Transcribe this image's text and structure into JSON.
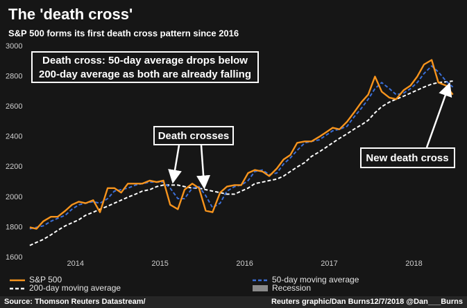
{
  "chart_data": {
    "type": "line",
    "title": "The 'death cross'",
    "subtitle": "S&P 500 forms its first death cross pattern since 2016",
    "annotations": {
      "main": [
        "Death cross: 50-day average drops below",
        "200-day average as both are already falling"
      ],
      "crosses": "Death crosses",
      "new": "New death cross"
    },
    "source": "Source: Thomson Reuters Datastream/",
    "credit": "Reuters graphic/Dan Burns12/7/2018 @Dan___Burns",
    "xlim": [
      2013.92,
      2018.98
    ],
    "xticks": [
      {
        "value": 2014.5,
        "label": "2014"
      },
      {
        "value": 2015.5,
        "label": "2015"
      },
      {
        "value": 2016.5,
        "label": "2016"
      },
      {
        "value": 2017.5,
        "label": "2017"
      },
      {
        "value": 2018.5,
        "label": "2018"
      }
    ],
    "ylim": [
      1600,
      3000
    ],
    "yticks": [
      1600,
      1800,
      2000,
      2200,
      2400,
      2600,
      2800,
      3000
    ],
    "x": [
      2013.96,
      2014.04,
      2014.12,
      2014.21,
      2014.29,
      2014.38,
      2014.46,
      2014.54,
      2014.62,
      2014.71,
      2014.79,
      2014.88,
      2014.96,
      2015.04,
      2015.12,
      2015.21,
      2015.29,
      2015.38,
      2015.46,
      2015.54,
      2015.62,
      2015.71,
      2015.79,
      2015.88,
      2015.96,
      2016.04,
      2016.12,
      2016.21,
      2016.29,
      2016.38,
      2016.46,
      2016.54,
      2016.62,
      2016.71,
      2016.79,
      2016.88,
      2016.96,
      2017.04,
      2017.12,
      2017.21,
      2017.29,
      2017.38,
      2017.46,
      2017.54,
      2017.62,
      2017.71,
      2017.79,
      2017.88,
      2017.96,
      2018.04,
      2018.12,
      2018.21,
      2018.29,
      2018.38,
      2018.46,
      2018.54,
      2018.62,
      2018.71,
      2018.79,
      2018.88,
      2018.96
    ],
    "series": [
      {
        "name": "S&P 500",
        "color": "#f7941d",
        "style": "solid",
        "values": [
          1800,
          1790,
          1840,
          1870,
          1870,
          1910,
          1950,
          1970,
          1960,
          1980,
          1900,
          2060,
          2060,
          2030,
          2090,
          2090,
          2090,
          2110,
          2100,
          2110,
          1950,
          1920,
          2050,
          2090,
          2060,
          1910,
          1900,
          2030,
          2070,
          2080,
          2080,
          2160,
          2180,
          2170,
          2140,
          2190,
          2250,
          2280,
          2360,
          2370,
          2370,
          2400,
          2430,
          2460,
          2450,
          2500,
          2560,
          2630,
          2680,
          2800,
          2700,
          2660,
          2650,
          2710,
          2740,
          2800,
          2880,
          2910,
          2760,
          2740,
          2680
        ]
      },
      {
        "name": "200-day moving average",
        "color": "#ffffff",
        "style": "dashed",
        "values": [
          1680,
          1700,
          1720,
          1750,
          1780,
          1810,
          1830,
          1850,
          1880,
          1900,
          1920,
          1940,
          1960,
          1980,
          2000,
          2020,
          2040,
          2050,
          2070,
          2080,
          2080,
          2080,
          2070,
          2060,
          2060,
          2050,
          2040,
          2030,
          2020,
          2020,
          2040,
          2060,
          2090,
          2100,
          2110,
          2120,
          2140,
          2170,
          2200,
          2230,
          2270,
          2300,
          2330,
          2360,
          2390,
          2420,
          2450,
          2480,
          2510,
          2560,
          2600,
          2630,
          2650,
          2670,
          2690,
          2710,
          2730,
          2750,
          2760,
          2765,
          2770
        ]
      },
      {
        "name": "50-day moving average",
        "color": "#3b6fd8",
        "style": "dashed",
        "values": [
          1790,
          1800,
          1810,
          1840,
          1860,
          1880,
          1920,
          1950,
          1960,
          1970,
          1960,
          1990,
          2040,
          2050,
          2060,
          2080,
          2090,
          2100,
          2100,
          2100,
          2060,
          1990,
          1990,
          2060,
          2070,
          2010,
          1930,
          1960,
          2040,
          2070,
          2080,
          2110,
          2170,
          2180,
          2150,
          2160,
          2220,
          2260,
          2310,
          2360,
          2370,
          2380,
          2410,
          2440,
          2450,
          2470,
          2530,
          2590,
          2650,
          2720,
          2760,
          2720,
          2680,
          2690,
          2720,
          2760,
          2820,
          2870,
          2830,
          2770,
          2730
        ]
      }
    ],
    "extra_legend": {
      "name": "Recession",
      "color": "#8a8a8a"
    }
  }
}
